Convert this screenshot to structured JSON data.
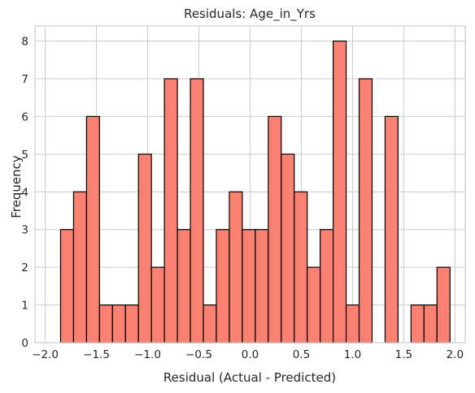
{
  "chart_data": {
    "type": "bar",
    "title": "Residuals: Age_in_Yrs",
    "xlabel": "Residual (Actual - Predicted)",
    "ylabel": "Frequency",
    "xlim": [
      -2.1,
      2.1
    ],
    "ylim": [
      0,
      8.4
    ],
    "xticks": [
      -2.0,
      -1.5,
      -1.0,
      -0.5,
      0.0,
      0.5,
      1.0,
      1.5,
      2.0
    ],
    "xtick_labels": [
      "−2.0",
      "−1.5",
      "−1.0",
      "−0.5",
      "0.0",
      "0.5",
      "1.0",
      "1.5",
      "2.0"
    ],
    "yticks": [
      0,
      1,
      2,
      3,
      4,
      5,
      6,
      7,
      8
    ],
    "ytick_labels": [
      "0",
      "1",
      "2",
      "3",
      "4",
      "5",
      "6",
      "7",
      "8"
    ],
    "grid": true,
    "bar_color": "#fa8072",
    "edge_color": "#000000",
    "bin_start": -1.85,
    "bin_width": 0.1267,
    "values": [
      3,
      4,
      6,
      1,
      1,
      1,
      5,
      2,
      7,
      3,
      7,
      1,
      3,
      4,
      3,
      3,
      6,
      5,
      4,
      2,
      3,
      8,
      1,
      7,
      0,
      6,
      0,
      1,
      1,
      2
    ]
  }
}
